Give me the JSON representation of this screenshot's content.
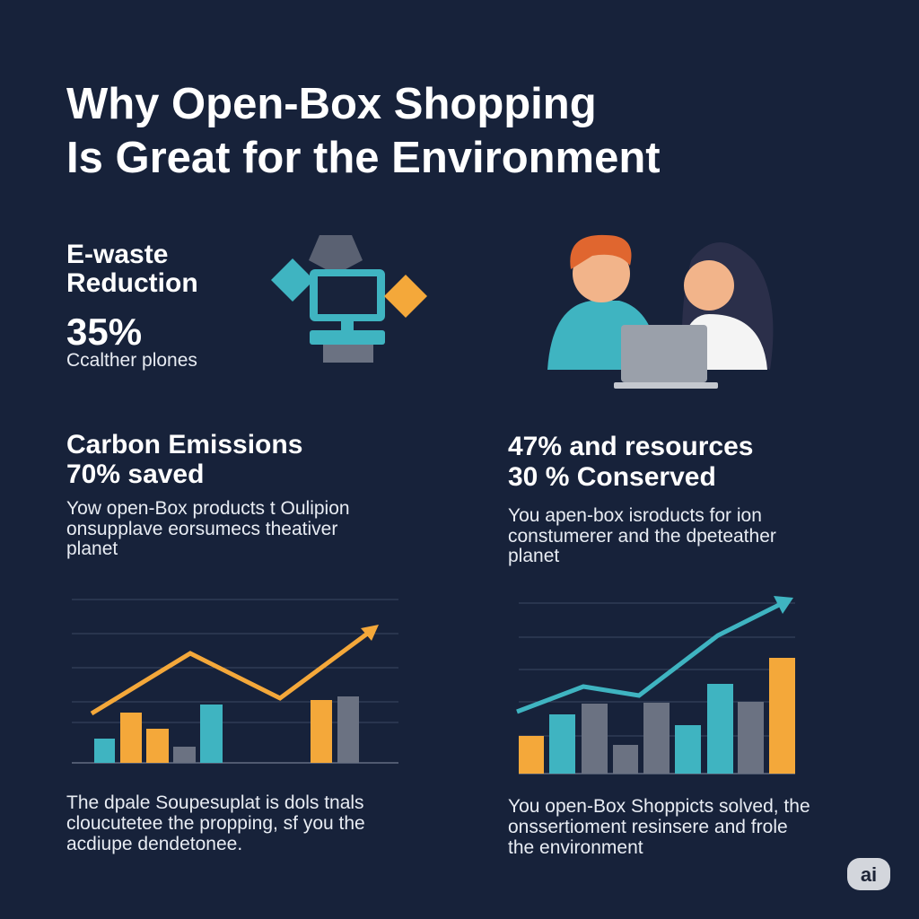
{
  "header": {
    "title_lines": [
      "Why Open-Box Shopping",
      "Is Great for the Environment"
    ]
  },
  "ewaste": {
    "heading_lines": [
      "E-waste",
      "Reduction"
    ],
    "stat": "35%",
    "caption": "Ccalther plones"
  },
  "carbon": {
    "heading_lines": [
      "Carbon Emissions",
      "70% saved"
    ],
    "body_lines": [
      "Yow open-Box products  t Oulipion",
      "onsupplave eorsumecs theativer",
      "planet"
    ]
  },
  "resources": {
    "heading_lines": [
      "47% and resources",
      "30 % Conserved"
    ],
    "body_lines": [
      "You apen-box isroducts for ion",
      "constumerer and the dpeteather",
      "planet"
    ]
  },
  "footer_left": {
    "body_lines": [
      "The dpale Soupesuplat is dols tnals",
      "cloucutetee the propping, sf you the",
      "acdiupe dendetonee."
    ]
  },
  "footer_right": {
    "body_lines": [
      "You open-Box Shoppicts solved, the",
      "onssertioment resinsere and frole",
      "the environment"
    ]
  },
  "badge": "ai"
}
